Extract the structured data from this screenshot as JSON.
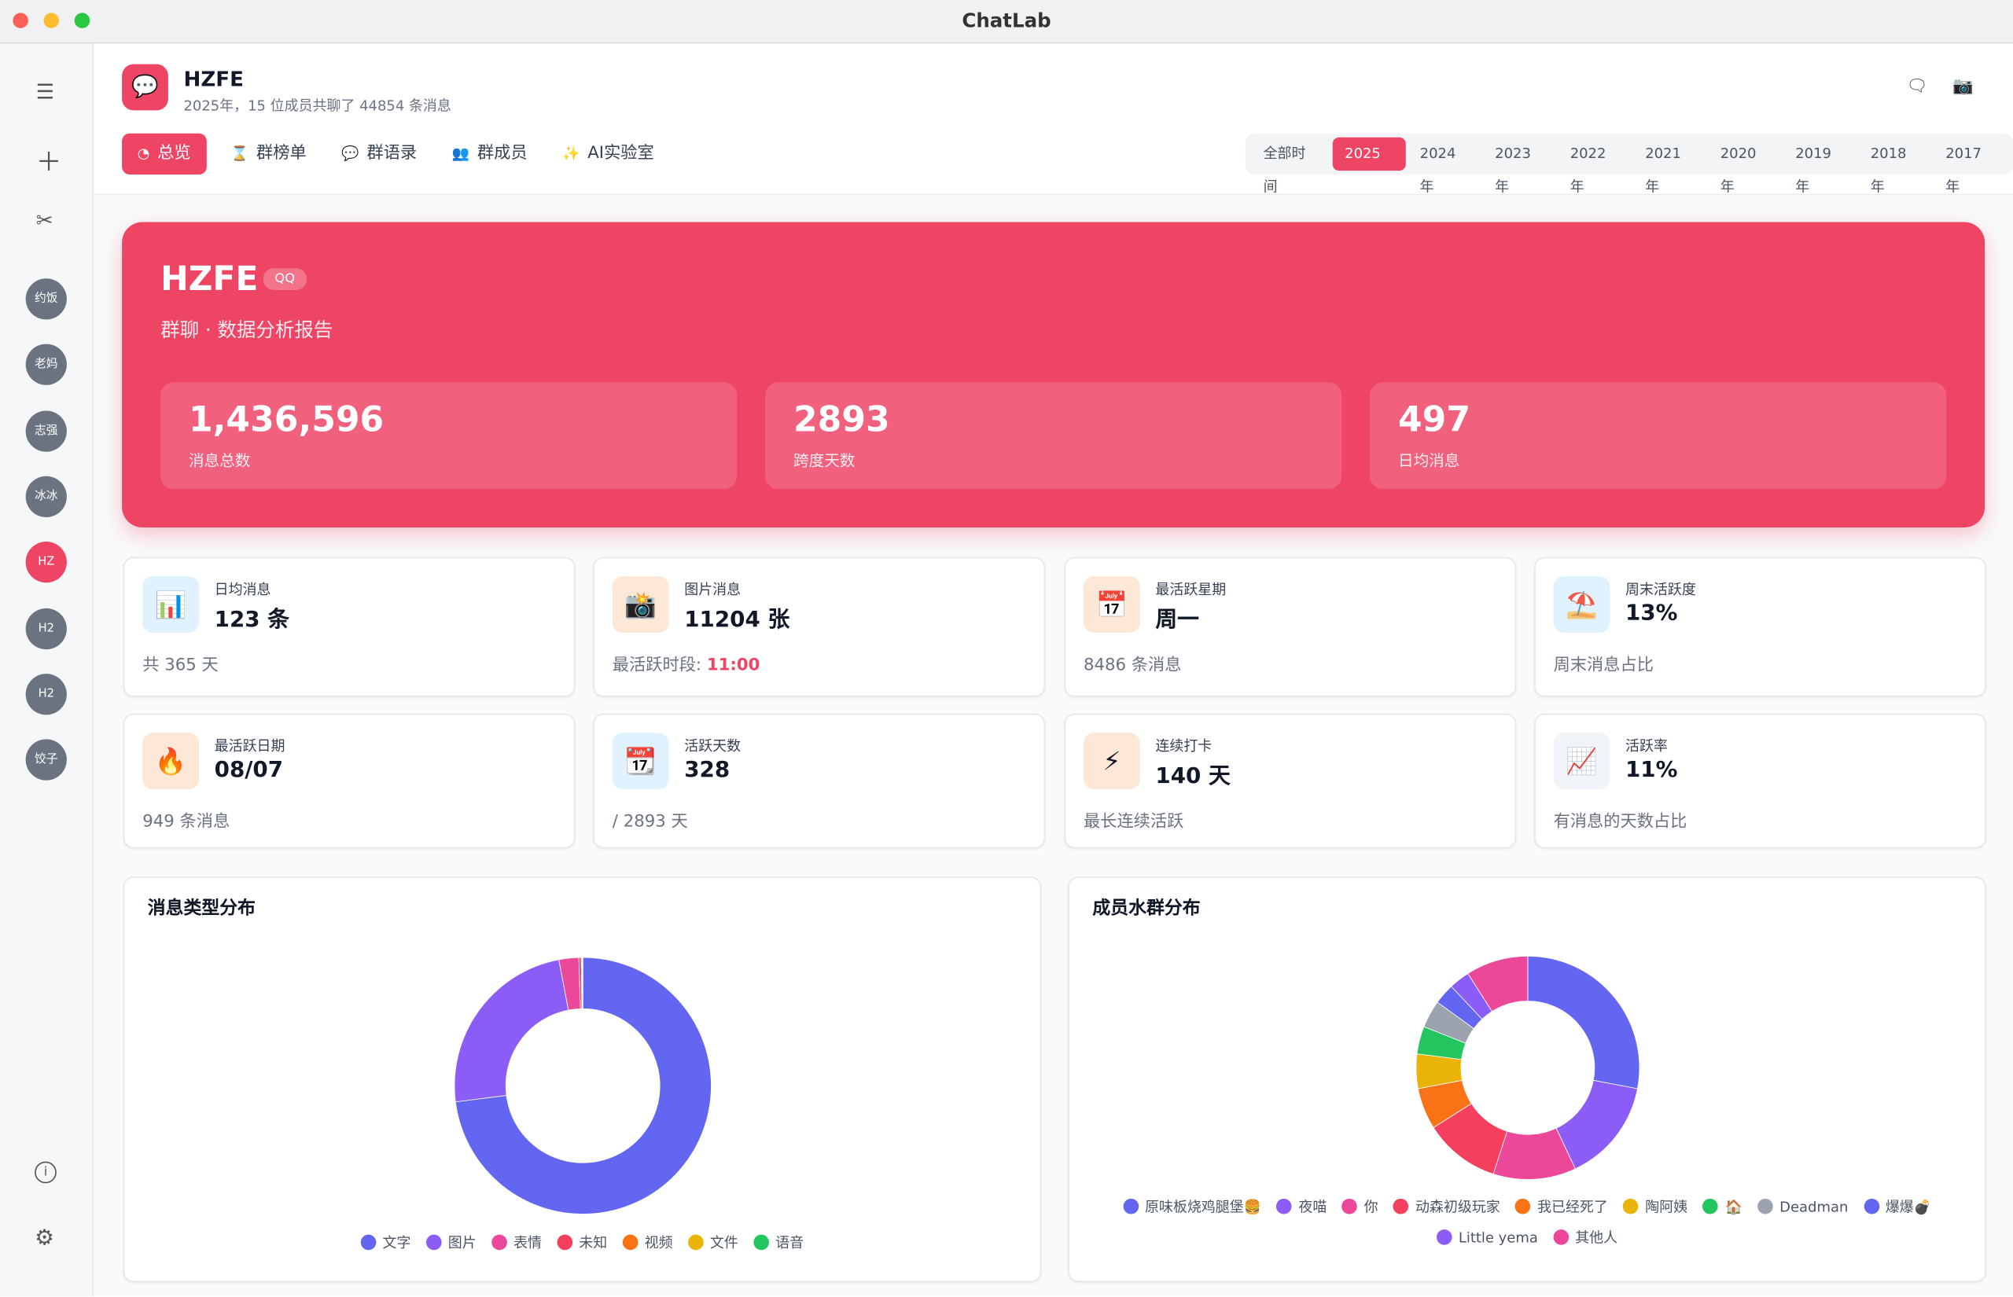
{
  "window": {
    "title": "ChatLab"
  },
  "sidebar": {
    "avatars": [
      "约饭",
      "老妈",
      "志强",
      "冰冰",
      "HZ",
      "H2",
      "H2",
      "饺子"
    ],
    "active": 4
  },
  "header": {
    "title": "HZFE",
    "subtitle": "2025年，15 位成员共聊了 44854 条消息"
  },
  "tabs": {
    "items": [
      "总览",
      "群榜单",
      "群语录",
      "群成员",
      "AI实验室"
    ],
    "active": 0
  },
  "years": {
    "items": [
      "全部时间",
      "2025年",
      "2024年",
      "2023年",
      "2022年",
      "2021年",
      "2020年",
      "2019年",
      "2018年",
      "2017年"
    ],
    "active": 1
  },
  "hero": {
    "title": "HZFE",
    "badge": "QQ",
    "subtitle": "群聊 · 数据分析报告",
    "stats": [
      {
        "value": "1,436,596",
        "label": "消息总数"
      },
      {
        "value": "2893",
        "label": "跨度天数"
      },
      {
        "value": "497",
        "label": "日均消息"
      }
    ]
  },
  "cards": [
    {
      "icon": "📊",
      "label": "日均消息",
      "value": "123 条",
      "sub": "共 365 天"
    },
    {
      "icon": "📸",
      "label": "图片消息",
      "value": "11204 张",
      "sub": "最活跃时段: ",
      "highlight": "11:00"
    },
    {
      "icon": "📅",
      "label": "最活跃星期",
      "value": "周一",
      "sub": "8486 条消息"
    },
    {
      "icon": "⛱️",
      "label": "周末活跃度",
      "value": "13%",
      "sub": "周末消息占比"
    },
    {
      "icon": "🔥",
      "label": "最活跃日期",
      "value": "08/07",
      "sub": "949 条消息"
    },
    {
      "icon": "📆",
      "label": "活跃天数",
      "value": "328",
      "sub": "/ 2893 天"
    },
    {
      "icon": "⚡",
      "label": "连续打卡",
      "value": "140 天",
      "sub": "最长连续活跃"
    },
    {
      "icon": "📈",
      "label": "活跃率",
      "value": "11%",
      "sub": "有消息的天数占比"
    }
  ],
  "chart_data": [
    {
      "type": "pie",
      "title": "消息类型分布",
      "categories": [
        "文字",
        "图片",
        "表情",
        "未知",
        "视频",
        "文件",
        "语音"
      ],
      "values": [
        73,
        24,
        2.5,
        0.3,
        0.1,
        0.05,
        0.05
      ],
      "colors": [
        "#6366f1",
        "#8b5cf6",
        "#ec4899",
        "#f43f5e",
        "#f97316",
        "#eab308",
        "#22c55e"
      ]
    },
    {
      "type": "pie",
      "title": "成员水群分布",
      "categories": [
        "原味板烧鸡腿堡🍔",
        "夜喵",
        "你",
        "动森初级玩家",
        "我已经死了",
        "陶阿姨",
        "🏠",
        "Deadman",
        "爆爆💣",
        "Little yema",
        "其他人"
      ],
      "values": [
        28,
        15,
        12,
        11,
        6,
        5,
        4,
        4,
        3,
        3,
        9
      ],
      "colors": [
        "#6366f1",
        "#8b5cf6",
        "#ec4899",
        "#f43f5e",
        "#f97316",
        "#eab308",
        "#22c55e",
        "#9ca3af",
        "#6366f1",
        "#8b5cf6",
        "#ec4899"
      ]
    }
  ]
}
